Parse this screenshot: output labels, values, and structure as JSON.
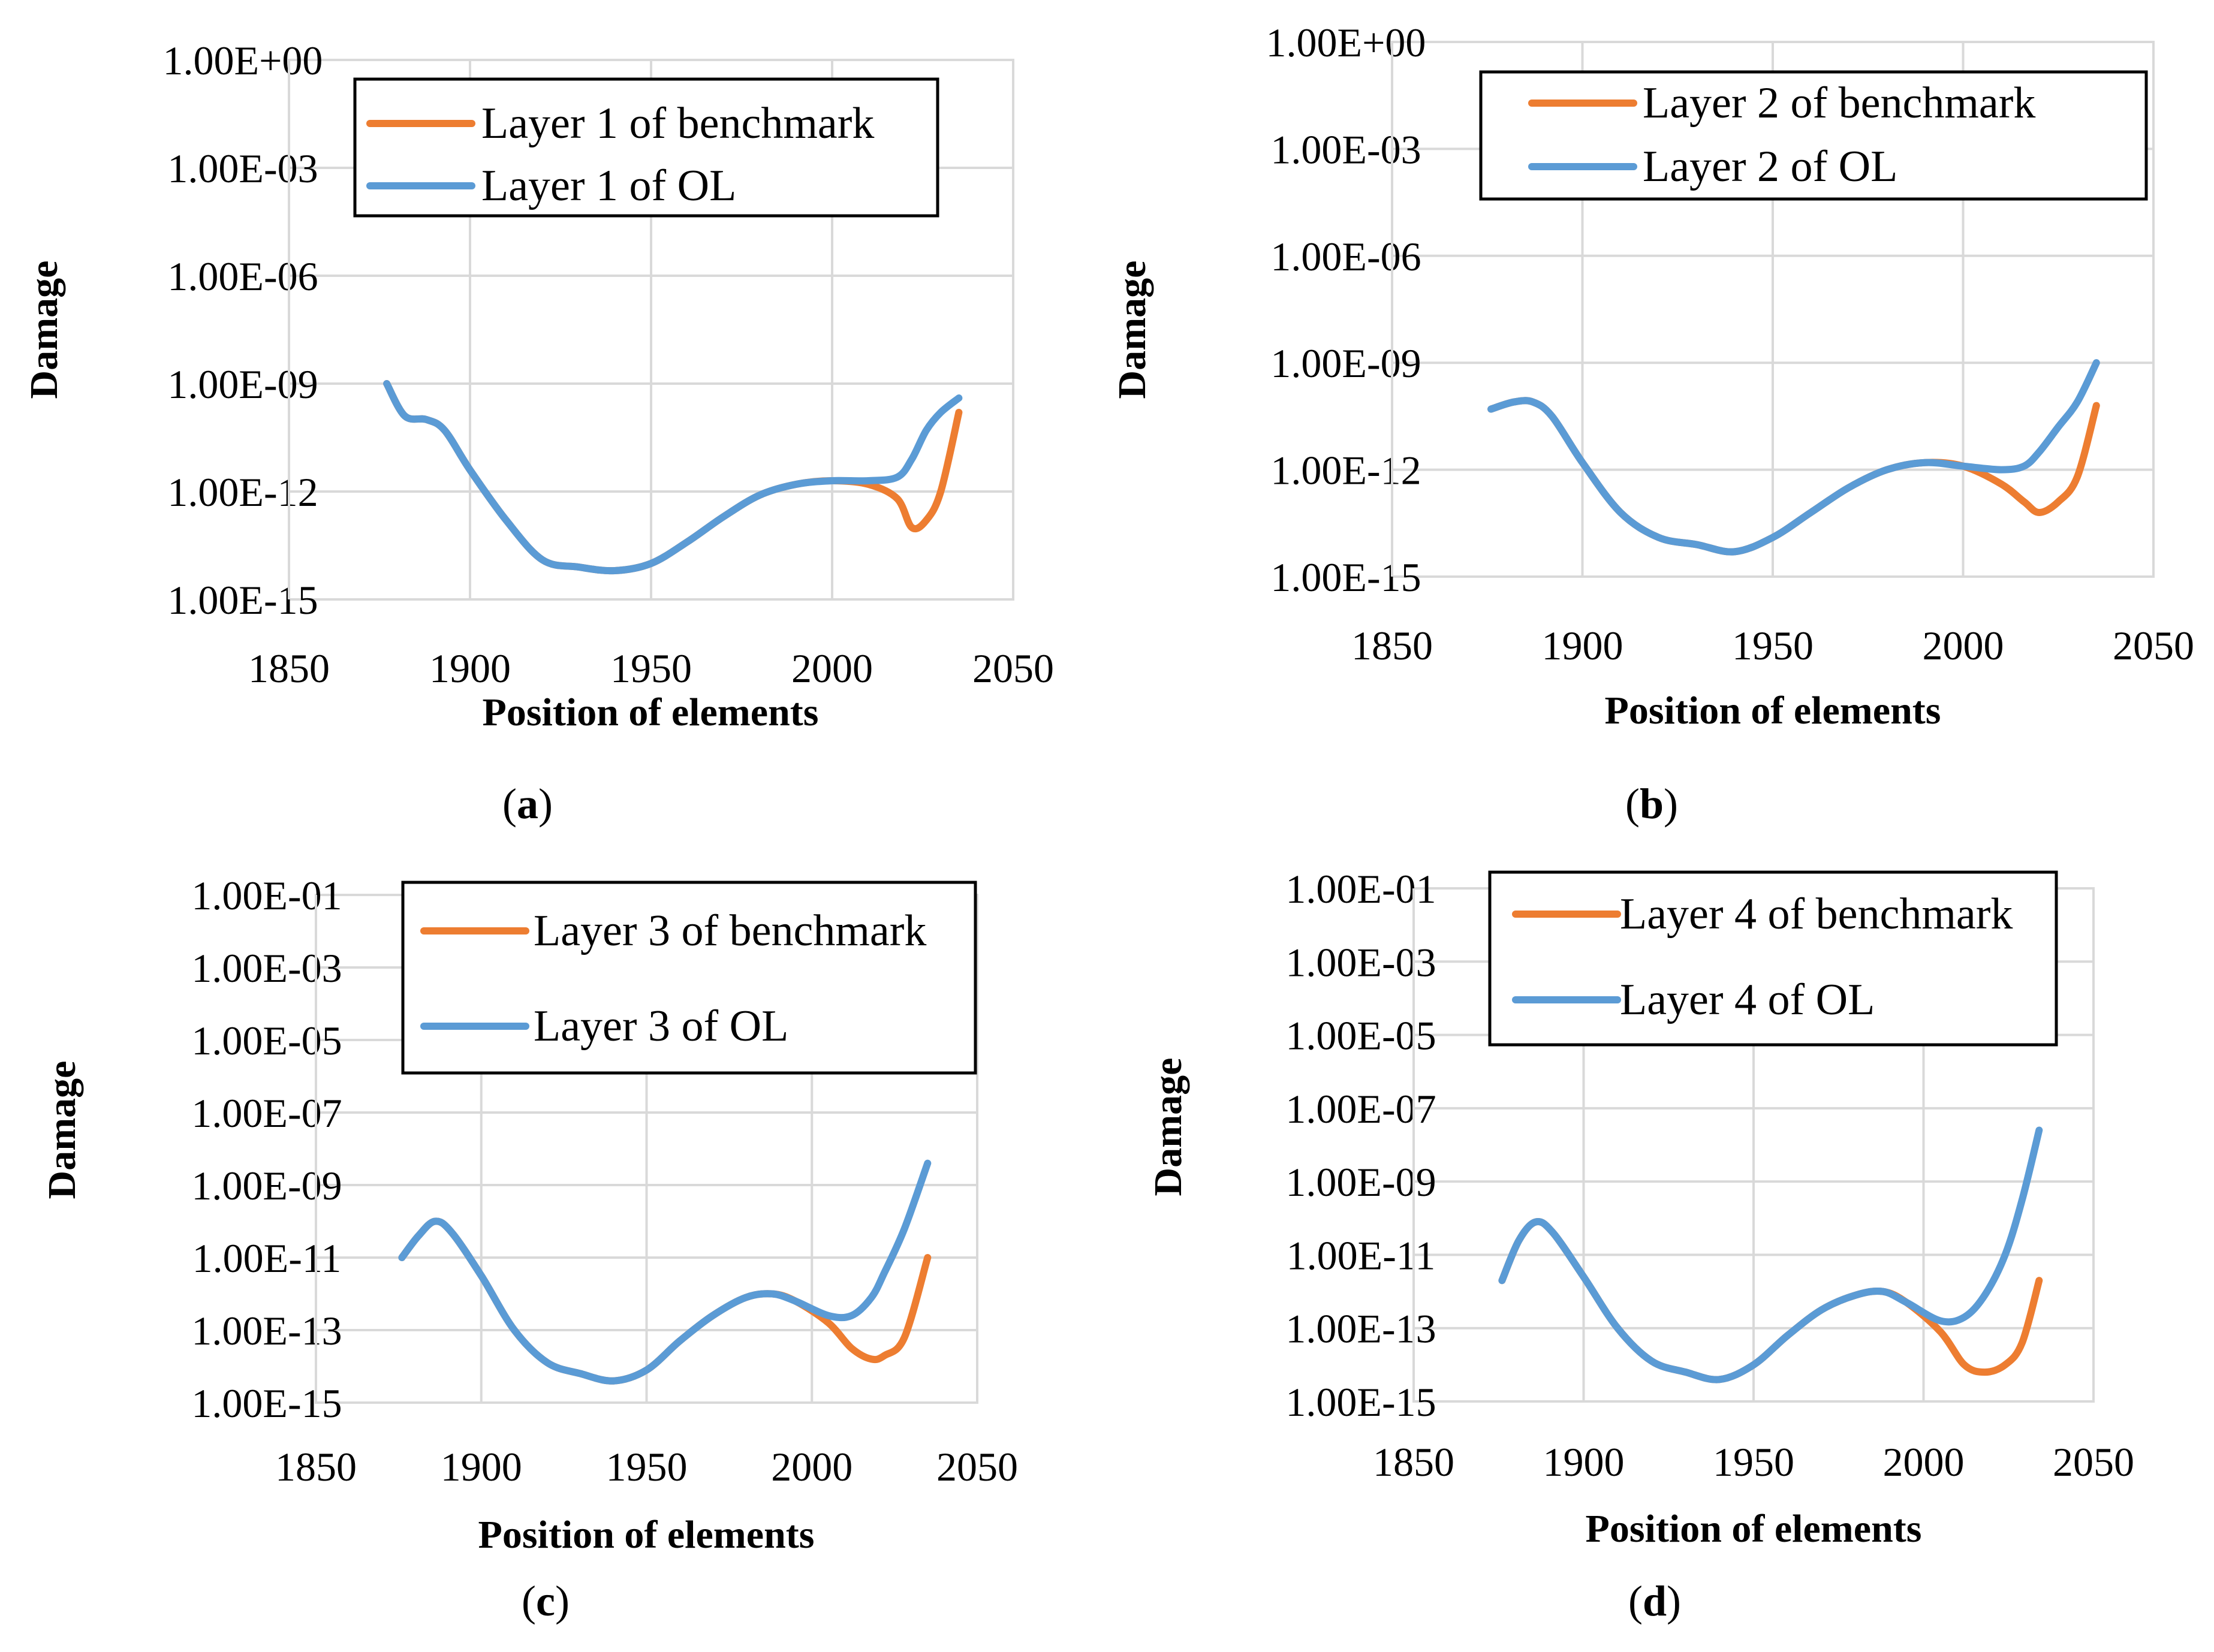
{
  "colors": {
    "benchmark": "#ED7D31",
    "ol": "#5B9BD5",
    "grid": "#d9d9d9"
  },
  "chart_data": [
    {
      "type": "line",
      "panel_label": "a",
      "xlabel": "Position of elements",
      "ylabel": "Damage",
      "y_scale": "log",
      "xlim": [
        1850,
        2050
      ],
      "ylim_exp": [
        -15,
        0
      ],
      "x_ticks": [
        "1850",
        "1900",
        "1950",
        "2000",
        "2050"
      ],
      "y_ticks": [
        "1.00E-15",
        "1.00E-12",
        "1.00E-09",
        "1.00E-06",
        "1.00E-03",
        "1.00E+00"
      ],
      "legend_position": "top-right",
      "series": [
        {
          "name": "Layer 1 of benchmark",
          "color": "#ED7D31",
          "x": [
            1877,
            1882,
            1888,
            1893,
            1900,
            1910,
            1920,
            1930,
            1940,
            1950,
            1960,
            1970,
            1980,
            1990,
            2000,
            2010,
            2018,
            2022,
            2026,
            2030,
            2035
          ],
          "log10_y": [
            -9.0,
            -9.9,
            -10.0,
            -10.3,
            -11.4,
            -12.8,
            -13.9,
            -14.1,
            -14.2,
            -14.0,
            -13.4,
            -12.7,
            -12.1,
            -11.8,
            -11.7,
            -11.8,
            -12.2,
            -13.0,
            -12.8,
            -12.0,
            -9.8
          ]
        },
        {
          "name": "Layer 1 of OL",
          "color": "#5B9BD5",
          "x": [
            1877,
            1882,
            1888,
            1893,
            1900,
            1910,
            1920,
            1930,
            1940,
            1950,
            1960,
            1970,
            1980,
            1990,
            2000,
            2010,
            2018,
            2022,
            2026,
            2030,
            2035
          ],
          "log10_y": [
            -9.0,
            -9.9,
            -10.0,
            -10.3,
            -11.4,
            -12.8,
            -13.9,
            -14.1,
            -14.2,
            -14.0,
            -13.4,
            -12.7,
            -12.1,
            -11.8,
            -11.7,
            -11.7,
            -11.6,
            -11.1,
            -10.3,
            -9.8,
            -9.4
          ]
        }
      ]
    },
    {
      "type": "line",
      "panel_label": "b",
      "xlabel": "Position of elements",
      "ylabel": "Damage",
      "y_scale": "log",
      "xlim": [
        1850,
        2050
      ],
      "ylim_exp": [
        -15,
        0
      ],
      "x_ticks": [
        "1850",
        "1900",
        "1950",
        "2000",
        "2050"
      ],
      "y_ticks": [
        "1.00E-15",
        "1.00E-12",
        "1.00E-09",
        "1.00E-06",
        "1.00E-03",
        "1.00E+00"
      ],
      "legend_position": "top-right",
      "series": [
        {
          "name": "Layer 2 of benchmark",
          "color": "#ED7D31",
          "x": [
            1876,
            1882,
            1887,
            1892,
            1900,
            1910,
            1920,
            1930,
            1940,
            1950,
            1960,
            1970,
            1980,
            1990,
            2000,
            2010,
            2016,
            2020,
            2025,
            2030,
            2035
          ],
          "log10_y": [
            -10.3,
            -10.1,
            -10.1,
            -10.5,
            -11.8,
            -13.2,
            -13.9,
            -14.1,
            -14.3,
            -13.9,
            -13.2,
            -12.5,
            -12.0,
            -11.8,
            -11.9,
            -12.4,
            -12.9,
            -13.2,
            -12.9,
            -12.2,
            -10.2
          ]
        },
        {
          "name": "Layer 2 of OL",
          "color": "#5B9BD5",
          "x": [
            1876,
            1882,
            1887,
            1892,
            1900,
            1910,
            1920,
            1930,
            1940,
            1950,
            1960,
            1970,
            1980,
            1990,
            2000,
            2010,
            2016,
            2020,
            2025,
            2030,
            2035
          ],
          "log10_y": [
            -10.3,
            -10.1,
            -10.1,
            -10.5,
            -11.8,
            -13.2,
            -13.9,
            -14.1,
            -14.3,
            -13.9,
            -13.2,
            -12.5,
            -12.0,
            -11.8,
            -11.9,
            -12.0,
            -11.9,
            -11.5,
            -10.8,
            -10.1,
            -9.0
          ]
        }
      ]
    },
    {
      "type": "line",
      "panel_label": "c",
      "xlabel": "Position of elements",
      "ylabel": "Damage",
      "y_scale": "log",
      "xlim": [
        1850,
        2050
      ],
      "ylim_exp": [
        -15,
        -1
      ],
      "x_ticks": [
        "1850",
        "1900",
        "1950",
        "2000",
        "2050"
      ],
      "y_ticks": [
        "1.00E-15",
        "1.00E-13",
        "1.00E-11",
        "1.00E-09",
        "1.00E-07",
        "1.00E-05",
        "1.00E-03",
        "1.00E-01"
      ],
      "legend_position": "top-right",
      "series": [
        {
          "name": "Layer 3 of benchmark",
          "color": "#ED7D31",
          "x": [
            1876,
            1881,
            1886,
            1891,
            1900,
            1910,
            1920,
            1930,
            1940,
            1950,
            1960,
            1970,
            1980,
            1988,
            1995,
            2005,
            2012,
            2018,
            2022,
            2028,
            2035
          ],
          "log10_y": [
            -11.0,
            -10.4,
            -10.0,
            -10.3,
            -11.5,
            -13.0,
            -13.9,
            -14.2,
            -14.4,
            -14.1,
            -13.3,
            -12.6,
            -12.1,
            -12.0,
            -12.2,
            -12.8,
            -13.5,
            -13.8,
            -13.7,
            -13.2,
            -11.0
          ]
        },
        {
          "name": "Layer 3 of OL",
          "color": "#5B9BD5",
          "x": [
            1876,
            1881,
            1886,
            1891,
            1900,
            1910,
            1920,
            1930,
            1940,
            1950,
            1960,
            1970,
            1980,
            1988,
            1995,
            2005,
            2012,
            2018,
            2022,
            2028,
            2035
          ],
          "log10_y": [
            -11.0,
            -10.4,
            -10.0,
            -10.3,
            -11.5,
            -13.0,
            -13.9,
            -14.2,
            -14.4,
            -14.1,
            -13.3,
            -12.6,
            -12.1,
            -12.0,
            -12.2,
            -12.6,
            -12.6,
            -12.1,
            -11.4,
            -10.2,
            -8.4
          ]
        }
      ]
    },
    {
      "type": "line",
      "panel_label": "d",
      "xlabel": "Position of elements",
      "ylabel": "Damage",
      "y_scale": "log",
      "xlim": [
        1850,
        2050
      ],
      "ylim_exp": [
        -15,
        -1
      ],
      "x_ticks": [
        "1850",
        "1900",
        "1950",
        "2000",
        "2050"
      ],
      "y_ticks": [
        "1.00E-15",
        "1.00E-13",
        "1.00E-11",
        "1.00E-09",
        "1.00E-07",
        "1.00E-05",
        "1.00E-03",
        "1.00E-01"
      ],
      "legend_position": "top-right",
      "series": [
        {
          "name": "Layer 4 of benchmark",
          "color": "#ED7D31",
          "x": [
            1876,
            1881,
            1886,
            1891,
            1900,
            1910,
            1920,
            1930,
            1940,
            1950,
            1960,
            1970,
            1980,
            1988,
            1995,
            2005,
            2012,
            2018,
            2024,
            2029,
            2034
          ],
          "log10_y": [
            -11.7,
            -10.6,
            -10.1,
            -10.4,
            -11.6,
            -13.0,
            -13.9,
            -14.2,
            -14.4,
            -14.0,
            -13.2,
            -12.5,
            -12.1,
            -12.0,
            -12.3,
            -13.1,
            -14.0,
            -14.2,
            -14.0,
            -13.4,
            -11.7
          ]
        },
        {
          "name": "Layer 4 of OL",
          "color": "#5B9BD5",
          "x": [
            1876,
            1881,
            1886,
            1891,
            1900,
            1910,
            1920,
            1930,
            1940,
            1950,
            1960,
            1970,
            1980,
            1988,
            1995,
            2005,
            2012,
            2018,
            2024,
            2029,
            2034
          ],
          "log10_y": [
            -11.7,
            -10.6,
            -10.1,
            -10.4,
            -11.6,
            -13.0,
            -13.9,
            -14.2,
            -14.4,
            -14.0,
            -13.2,
            -12.5,
            -12.1,
            -12.0,
            -12.3,
            -12.8,
            -12.7,
            -12.1,
            -11.0,
            -9.5,
            -7.6
          ]
        }
      ]
    }
  ]
}
